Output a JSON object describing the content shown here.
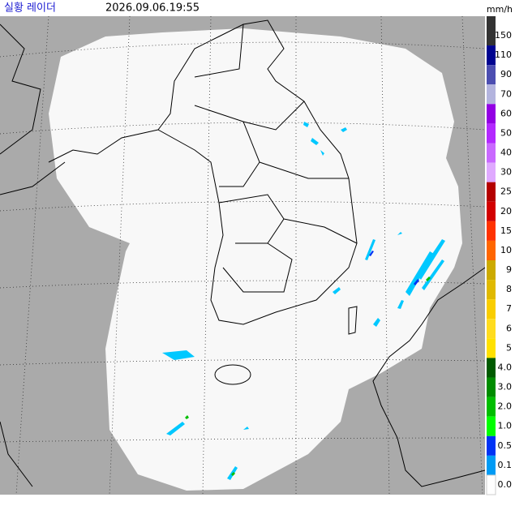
{
  "header": {
    "title": "실황 레이더",
    "timestamp": "2026.09.06.19:55",
    "unit": "mm/h"
  },
  "legend": {
    "items": [
      {
        "label": "150",
        "color": "#333333"
      },
      {
        "label": "110",
        "color": "#000390"
      },
      {
        "label": "90",
        "color": "#4c4eb1"
      },
      {
        "label": "70",
        "color": "#b3b4de"
      },
      {
        "label": "60",
        "color": "#9300e4"
      },
      {
        "label": "50",
        "color": "#b329ff"
      },
      {
        "label": "40",
        "color": "#c969ff"
      },
      {
        "label": "30",
        "color": "#dfa9ff"
      },
      {
        "label": "25",
        "color": "#b40000"
      },
      {
        "label": "20",
        "color": "#d20000"
      },
      {
        "label": "15",
        "color": "#ff3200"
      },
      {
        "label": "10",
        "color": "#ff6600"
      },
      {
        "label": "9",
        "color": "#ccaa00"
      },
      {
        "label": "8",
        "color": "#e0b900"
      },
      {
        "label": "7",
        "color": "#f9cd00"
      },
      {
        "label": "6",
        "color": "#ffdc1f"
      },
      {
        "label": "5",
        "color": "#ffe100"
      },
      {
        "label": "4.0",
        "color": "#005a00"
      },
      {
        "label": "3.0",
        "color": "#008c00"
      },
      {
        "label": "2.0",
        "color": "#00be00"
      },
      {
        "label": "1.0",
        "color": "#00ff00"
      },
      {
        "label": "0.5",
        "color": "#0033f5"
      },
      {
        "label": "0.1",
        "color": "#009bf5"
      },
      {
        "label": "0.0",
        "color": "#ffffff"
      }
    ]
  }
}
